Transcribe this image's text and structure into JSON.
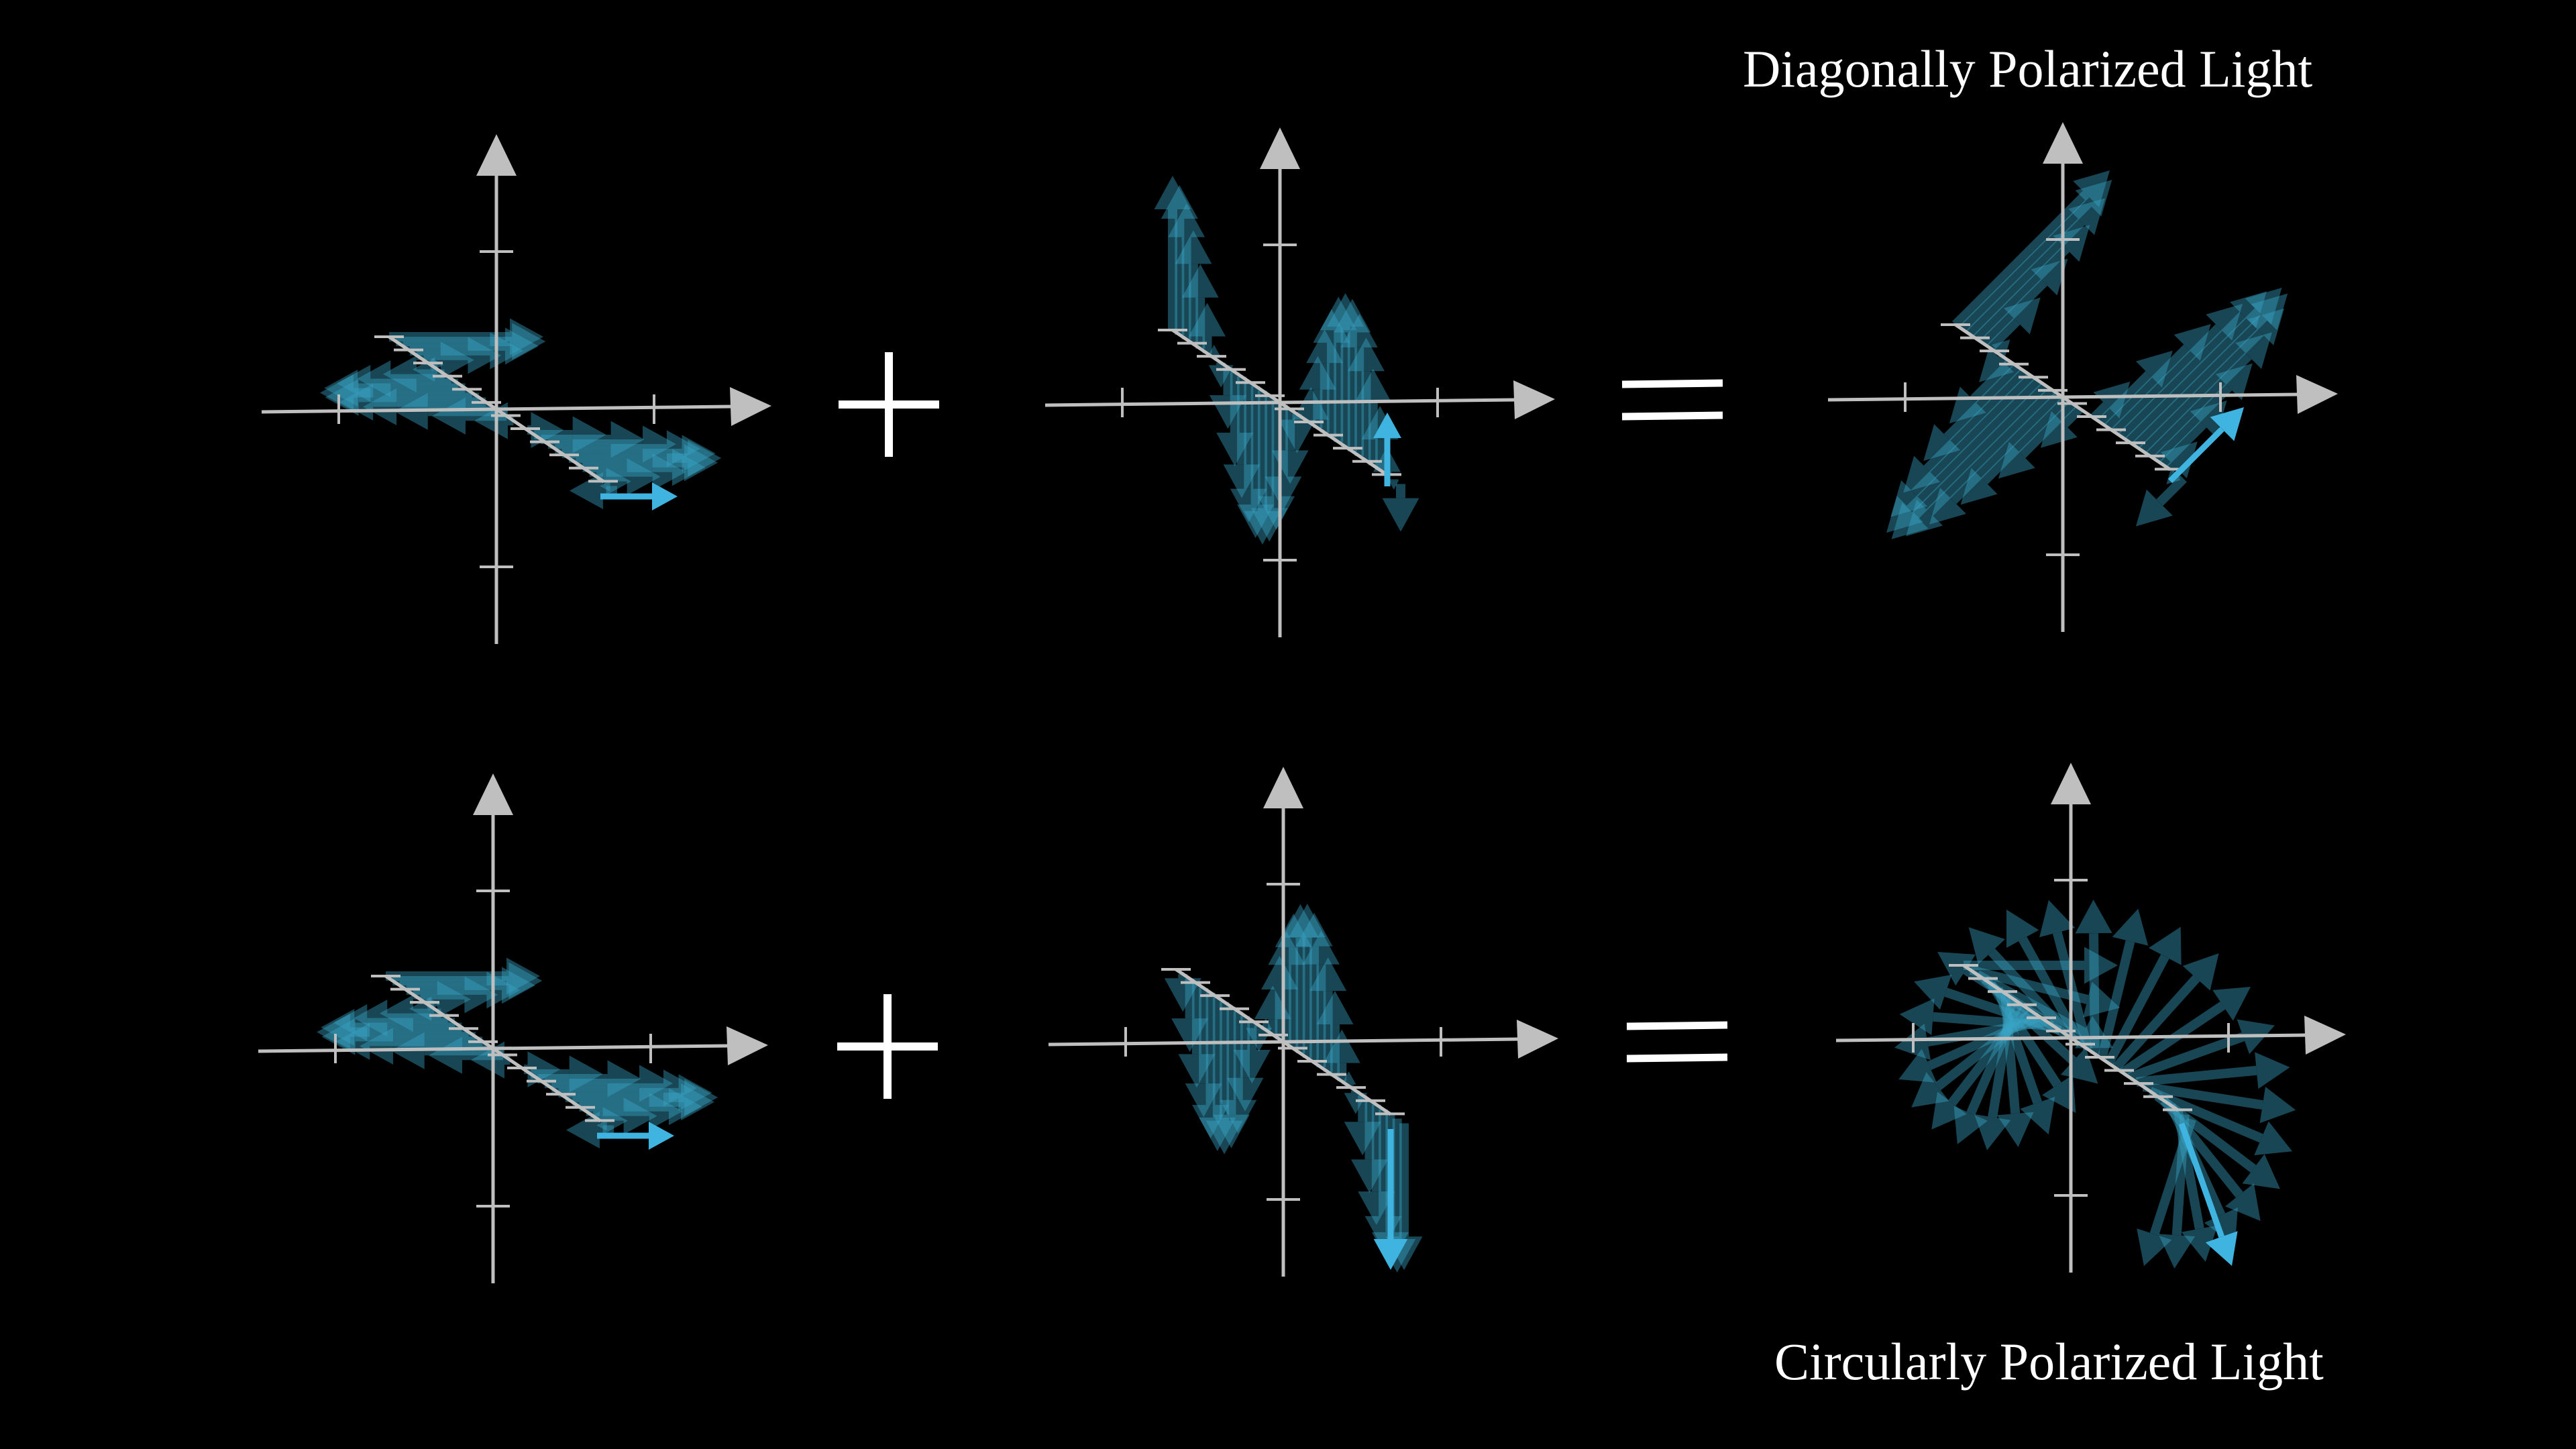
{
  "labels": {
    "top": "Diagonally Polarized Light",
    "bottom": "Circularly Polarized Light"
  },
  "colors": {
    "background": "#000000",
    "axis": "#bfbfbf",
    "wave": "#3aa6c8",
    "highlight": "#3fb4e0",
    "operator": "#ffffff"
  },
  "rows": [
    {
      "panels": [
        {
          "name": "horizontal-wave",
          "mode": "horizontal",
          "phase_deg": 0,
          "cycles": 1.3
        },
        {
          "name": "vertical-wave",
          "mode": "vertical",
          "phase_deg": 0,
          "cycles": 1.3
        },
        {
          "name": "diagonal-result",
          "mode": "diagonal",
          "phase_deg": 0,
          "cycles": 1.3
        }
      ]
    },
    {
      "panels": [
        {
          "name": "horizontal-wave",
          "mode": "horizontal",
          "phase_deg": 0,
          "cycles": 1.3
        },
        {
          "name": "vertical-wave",
          "mode": "vertical",
          "phase_deg": 90,
          "cycles": 1.3
        },
        {
          "name": "circular-result",
          "mode": "circular",
          "phase_deg": 90,
          "cycles": 1.3
        }
      ]
    }
  ]
}
